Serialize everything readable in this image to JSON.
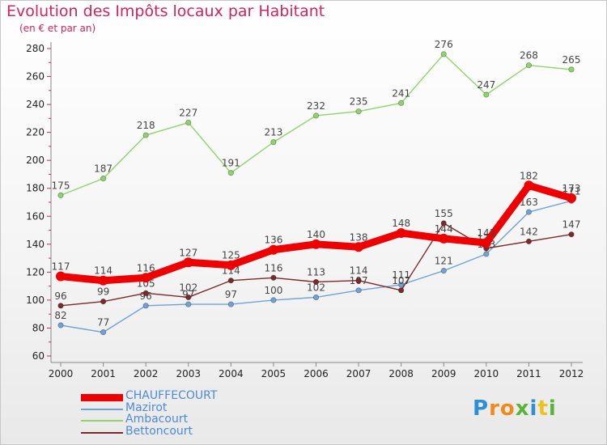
{
  "title": "Evolution des Impôts locaux par Habitant",
  "subtitle": "(en € et par an)",
  "logo": {
    "text": "Proxiti",
    "letters": [
      {
        "ch": "P",
        "color": "#2e8fd6"
      },
      {
        "ch": "r",
        "color": "#f08a1c"
      },
      {
        "ch": "o",
        "color": "#f08a1c"
      },
      {
        "ch": "x",
        "color": "#5ab43c"
      },
      {
        "ch": "i",
        "color": "#2e8fd6"
      },
      {
        "ch": "t",
        "color": "#f0c21c"
      },
      {
        "ch": "i",
        "color": "#5ab43c"
      }
    ]
  },
  "chart_data": {
    "type": "line",
    "title": "Evolution des Impôts locaux par Habitant",
    "subtitle": "(en € et par an)",
    "categories": [
      "2000",
      "2001",
      "2002",
      "2003",
      "2004",
      "2005",
      "2006",
      "2007",
      "2008",
      "2009",
      "2010",
      "2011",
      "2012"
    ],
    "ylim": [
      60,
      280
    ],
    "yticks": [
      60,
      80,
      100,
      120,
      140,
      160,
      180,
      200,
      220,
      240,
      260,
      280
    ],
    "grid": false,
    "legend_position": "bottom-left",
    "series": [
      {
        "name": "CHAUFFECOURT",
        "color": "#ee0000",
        "values": [
          117,
          114,
          116,
          127,
          125,
          136,
          140,
          138,
          148,
          144,
          141,
          182,
          173
        ]
      },
      {
        "name": "Mazirot",
        "color": "#6fa3d6",
        "values": [
          82,
          77,
          96,
          97,
          97,
          100,
          102,
          107,
          111,
          121,
          133,
          163,
          171
        ]
      },
      {
        "name": "Ambacourt",
        "color": "#8fd46a",
        "values": [
          175,
          187,
          218,
          227,
          191,
          213,
          232,
          235,
          241,
          276,
          247,
          268,
          265
        ]
      },
      {
        "name": "Bettoncourt",
        "color": "#7a2a2a",
        "values": [
          96,
          99,
          105,
          102,
          114,
          116,
          113,
          114,
          107,
          155,
          137,
          142,
          147
        ]
      }
    ]
  }
}
